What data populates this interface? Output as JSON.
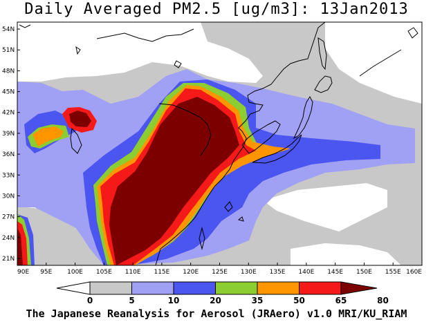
{
  "title": "Daily Averaged PM2.5 [ug/m3]: 13Jan2013",
  "footer": "The Japanese Reanalysis for Aerosol (JRAero) v1.0 MRI/KU_RIAM",
  "map": {
    "lon_range": [
      90,
      160
    ],
    "lat_range": [
      20,
      55
    ],
    "lon_ticks": [
      "90E",
      "95E",
      "100E",
      "105E",
      "110E",
      "115E",
      "120E",
      "125E",
      "130E",
      "135E",
      "140E",
      "145E",
      "150E",
      "155E",
      "160E"
    ],
    "lat_ticks": [
      "54N",
      "51N",
      "48N",
      "45N",
      "42N",
      "39N",
      "36N",
      "33N",
      "30N",
      "27N",
      "24N",
      "21N"
    ],
    "background_color": "#c8c8c8"
  },
  "colorbar": {
    "levels": [
      "0",
      "5",
      "10",
      "20",
      "35",
      "50",
      "65",
      "80"
    ],
    "colors": [
      "#ffffff",
      "#c8c8c8",
      "#a0a0f5",
      "#4b55f0",
      "#8ccd32",
      "#ff9600",
      "#f51919",
      "#7d0000"
    ]
  }
}
